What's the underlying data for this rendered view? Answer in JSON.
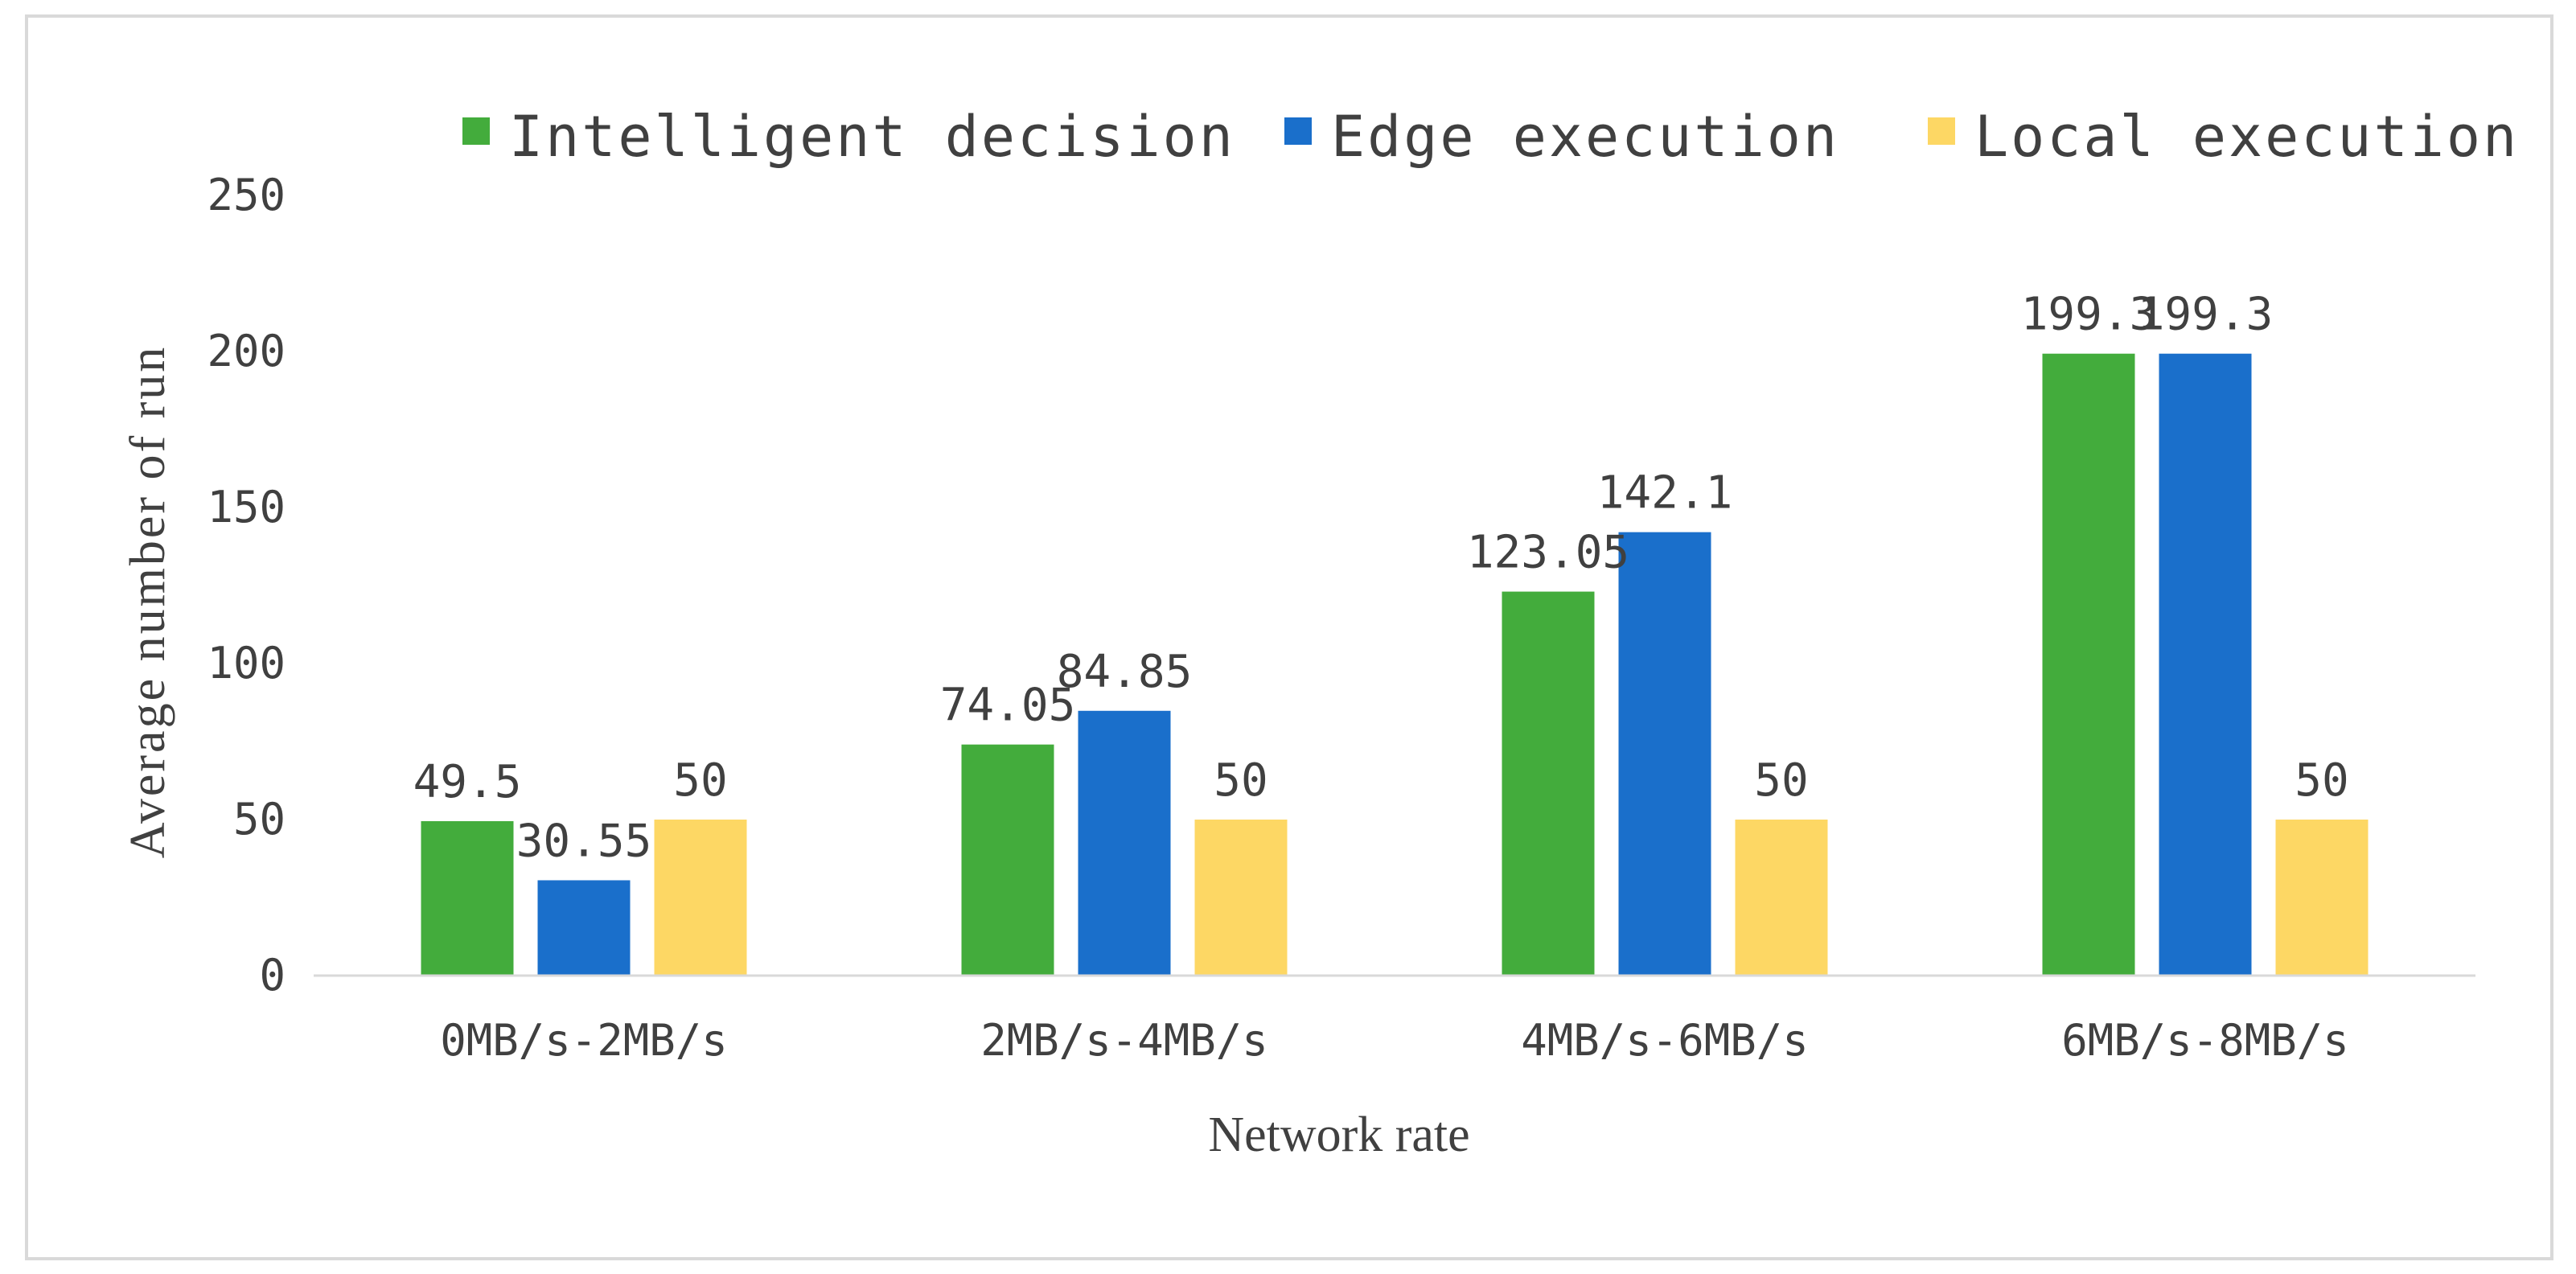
{
  "chart_data": {
    "type": "bar",
    "title": "",
    "xlabel": "Network rate",
    "ylabel": "Average number of run",
    "categories": [
      "0MB/s-2MB/s",
      "2MB/s-4MB/s",
      "4MB/s-6MB/s",
      "6MB/s-8MB/s"
    ],
    "series": [
      {
        "name": "Intelligent decision",
        "color": "#43ac3c",
        "values": [
          49.5,
          74.05,
          123.05,
          199.3
        ],
        "labels": [
          "49.5",
          "74.05",
          "123.05",
          "199.3"
        ]
      },
      {
        "name": "Edge execution",
        "color": "#1a6fcb",
        "values": [
          30.55,
          84.85,
          142.1,
          199.3
        ],
        "labels": [
          "30.55",
          "84.85",
          "142.1",
          "199.3"
        ]
      },
      {
        "name": "Local execution",
        "color": "#fdd764",
        "values": [
          50,
          50,
          50,
          50
        ],
        "labels": [
          "50",
          "50",
          "50",
          "50"
        ]
      }
    ],
    "ylim": [
      0,
      250
    ],
    "yticks": [
      0,
      50,
      100,
      150,
      200,
      250
    ],
    "ytick_labels": [
      "0",
      "50",
      "100",
      "150",
      "200",
      "250"
    ],
    "grid": false,
    "legend_position": "top",
    "colors": {
      "axis": "#d9d9d9",
      "frame": "#d9d9d9",
      "text": "#404040"
    }
  }
}
